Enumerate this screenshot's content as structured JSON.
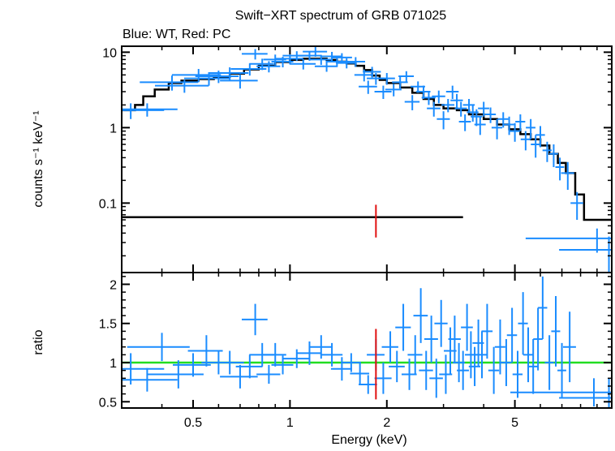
{
  "title": "Swift−XRT spectrum of GRB 071025",
  "subtitle": "Blue: WT, Red: PC",
  "colors": {
    "wt": "#1a8cff",
    "pc": "#e01010",
    "model": "#000000",
    "ratio_line": "#22dd22"
  },
  "chart_data": [
    {
      "type": "scatter",
      "panel": "top",
      "ylabel": "counts s⁻¹ keV⁻¹",
      "xscale": "log",
      "yscale": "log",
      "xlim": [
        0.3,
        10
      ],
      "ylim": [
        0.012,
        12
      ],
      "ytick_labels": [
        "0.1",
        "1",
        "10"
      ],
      "series": [
        {
          "role": "wt-data",
          "points": [
            [
              0.32,
              1.7,
              0.02,
              0.4
            ],
            [
              0.36,
              1.75,
              0.02,
              0.35
            ],
            [
              0.43,
              4.0,
              0.02,
              0.9
            ],
            [
              0.47,
              3.6,
              0.02,
              0.7
            ],
            [
              0.52,
              5.0,
              0.02,
              1.0
            ],
            [
              0.56,
              4.5,
              0.02,
              0.9
            ],
            [
              0.6,
              4.8,
              0.02,
              0.9
            ],
            [
              0.65,
              5.3,
              0.02,
              1.0
            ],
            [
              0.7,
              4.2,
              0.02,
              0.9
            ],
            [
              0.75,
              6.0,
              0.02,
              1.1
            ],
            [
              0.78,
              9.5,
              0.015,
              1.5
            ],
            [
              0.82,
              7.0,
              0.015,
              1.2
            ],
            [
              0.86,
              6.5,
              0.015,
              1.1
            ],
            [
              0.9,
              8.0,
              0.015,
              1.3
            ],
            [
              0.95,
              7.5,
              0.015,
              1.2
            ],
            [
              1.0,
              8.2,
              0.02,
              1.3
            ],
            [
              1.05,
              9.0,
              0.02,
              1.3
            ],
            [
              1.1,
              7.0,
              0.02,
              1.1
            ],
            [
              1.15,
              9.0,
              0.02,
              1.3
            ],
            [
              1.2,
              10.2,
              0.02,
              1.5
            ],
            [
              1.25,
              8.0,
              0.02,
              1.2
            ],
            [
              1.3,
              6.5,
              0.02,
              1.0
            ],
            [
              1.35,
              8.8,
              0.02,
              1.3
            ],
            [
              1.4,
              7.5,
              0.02,
              1.1
            ],
            [
              1.45,
              8.5,
              0.02,
              1.2
            ],
            [
              1.5,
              7.2,
              0.02,
              1.1
            ],
            [
              1.6,
              7.5,
              0.02,
              1.1
            ],
            [
              1.7,
              5.0,
              0.02,
              0.9
            ],
            [
              1.75,
              3.5,
              0.02,
              0.7
            ],
            [
              1.8,
              5.5,
              0.02,
              0.9
            ],
            [
              1.85,
              4.5,
              0.02,
              0.8
            ],
            [
              1.95,
              3.0,
              0.02,
              0.6
            ],
            [
              2.0,
              4.5,
              0.02,
              0.8
            ],
            [
              2.1,
              3.2,
              0.02,
              0.6
            ],
            [
              2.2,
              4.0,
              0.02,
              0.7
            ],
            [
              2.3,
              4.8,
              0.02,
              0.8
            ],
            [
              2.4,
              2.2,
              0.02,
              0.5
            ],
            [
              2.5,
              3.5,
              0.02,
              0.6
            ],
            [
              2.6,
              3.0,
              0.02,
              0.6
            ],
            [
              2.7,
              2.5,
              0.02,
              0.5
            ],
            [
              2.8,
              1.8,
              0.02,
              0.4
            ],
            [
              2.9,
              2.6,
              0.02,
              0.5
            ],
            [
              3.0,
              1.3,
              0.02,
              0.35
            ],
            [
              3.1,
              2.0,
              0.02,
              0.4
            ],
            [
              3.2,
              3.0,
              0.02,
              0.6
            ],
            [
              3.3,
              2.3,
              0.02,
              0.5
            ],
            [
              3.4,
              1.8,
              0.02,
              0.4
            ],
            [
              3.5,
              1.2,
              0.02,
              0.3
            ],
            [
              3.6,
              2.0,
              0.02,
              0.4
            ],
            [
              3.7,
              1.6,
              0.02,
              0.4
            ],
            [
              3.8,
              1.4,
              0.02,
              0.35
            ],
            [
              3.9,
              1.1,
              0.02,
              0.3
            ],
            [
              4.0,
              1.8,
              0.02,
              0.4
            ],
            [
              4.2,
              1.5,
              0.02,
              0.35
            ],
            [
              4.4,
              1.0,
              0.02,
              0.3
            ],
            [
              4.6,
              1.3,
              0.02,
              0.3
            ],
            [
              4.8,
              1.1,
              0.02,
              0.3
            ],
            [
              5.0,
              0.9,
              0.02,
              0.25
            ],
            [
              5.2,
              1.2,
              0.02,
              0.3
            ],
            [
              5.4,
              0.7,
              0.02,
              0.2
            ],
            [
              5.6,
              1.0,
              0.02,
              0.3
            ],
            [
              5.8,
              0.6,
              0.02,
              0.2
            ],
            [
              6.0,
              0.8,
              0.02,
              0.25
            ],
            [
              6.3,
              0.5,
              0.02,
              0.15
            ],
            [
              6.6,
              0.45,
              0.02,
              0.15
            ],
            [
              6.9,
              0.3,
              0.02,
              0.1
            ],
            [
              7.3,
              0.25,
              0.03,
              0.1
            ],
            [
              7.8,
              0.1,
              0.03,
              0.04
            ],
            [
              9.0,
              0.034,
              0.4,
              0.012
            ],
            [
              9.8,
              0.024,
              0.3,
              0.012
            ]
          ]
        },
        {
          "role": "wt-model",
          "steps": [
            [
              0.3,
              1.7
            ],
            [
              0.33,
              2.0
            ],
            [
              0.35,
              2.6
            ],
            [
              0.38,
              3.2
            ],
            [
              0.42,
              3.9
            ],
            [
              0.46,
              4.2
            ],
            [
              0.52,
              4.4
            ],
            [
              0.58,
              4.7
            ],
            [
              0.65,
              5.2
            ],
            [
              0.72,
              5.9
            ],
            [
              0.8,
              6.6
            ],
            [
              0.9,
              7.4
            ],
            [
              1.0,
              7.9
            ],
            [
              1.1,
              8.2
            ],
            [
              1.2,
              8.2
            ],
            [
              1.3,
              7.9
            ],
            [
              1.4,
              7.5
            ],
            [
              1.5,
              7.1
            ],
            [
              1.6,
              6.6
            ],
            [
              1.7,
              5.8
            ],
            [
              1.8,
              4.9
            ],
            [
              1.9,
              4.3
            ],
            [
              2.0,
              3.9
            ],
            [
              2.2,
              3.4
            ],
            [
              2.4,
              2.9
            ],
            [
              2.6,
              2.4
            ],
            [
              2.8,
              2.0
            ],
            [
              3.0,
              1.8
            ],
            [
              3.3,
              1.7
            ],
            [
              3.6,
              1.5
            ],
            [
              4.0,
              1.3
            ],
            [
              4.4,
              1.1
            ],
            [
              4.8,
              0.95
            ],
            [
              5.2,
              0.82
            ],
            [
              5.6,
              0.7
            ],
            [
              6.0,
              0.58
            ],
            [
              6.4,
              0.45
            ],
            [
              6.8,
              0.34
            ],
            [
              7.2,
              0.25
            ],
            [
              7.7,
              0.13
            ],
            [
              8.2,
              0.06
            ],
            [
              9.2,
              0.06
            ],
            [
              10.0,
              0.04
            ]
          ]
        },
        {
          "role": "pc-data",
          "points": [
            [
              1.85,
              0.065,
              0.0,
              0.03
            ]
          ]
        },
        {
          "role": "pc-model",
          "steps": [
            [
              0.3,
              0.065
            ],
            [
              3.45,
              0.065
            ]
          ]
        }
      ]
    },
    {
      "type": "scatter",
      "panel": "bottom",
      "ylabel": "ratio",
      "xlabel": "Energy (keV)",
      "xscale": "log",
      "xlim": [
        0.3,
        10
      ],
      "ylim": [
        0.42,
        2.15
      ],
      "ytick_labels": [
        "0.5",
        "1",
        "1.5",
        "2"
      ],
      "xtick_labels": [
        "0.5",
        "1",
        "2",
        "5"
      ],
      "xtick_values": [
        0.5,
        1,
        2,
        5
      ],
      "reference_line": 1,
      "series": [
        {
          "role": "wt-data",
          "points": [
            [
              0.32,
              0.92,
              0.02,
              0.2
            ],
            [
              0.36,
              0.78,
              0.02,
              0.15
            ],
            [
              0.4,
              1.2,
              0.02,
              0.18
            ],
            [
              0.45,
              0.85,
              0.02,
              0.18
            ],
            [
              0.5,
              0.97,
              0.015,
              0.15
            ],
            [
              0.55,
              1.15,
              0.015,
              0.2
            ],
            [
              0.6,
              1.0,
              0.015,
              0.15
            ],
            [
              0.65,
              1.0,
              0.015,
              0.15
            ],
            [
              0.7,
              0.82,
              0.02,
              0.15
            ],
            [
              0.75,
              0.95,
              0.015,
              0.15
            ],
            [
              0.78,
              1.55,
              0.015,
              0.2
            ],
            [
              0.82,
              1.1,
              0.015,
              0.15
            ],
            [
              0.86,
              0.85,
              0.015,
              0.12
            ],
            [
              0.9,
              1.1,
              0.015,
              0.15
            ],
            [
              0.95,
              0.97,
              0.015,
              0.12
            ],
            [
              1.05,
              1.05,
              0.02,
              0.12
            ],
            [
              1.15,
              1.12,
              0.02,
              0.15
            ],
            [
              1.25,
              1.2,
              0.02,
              0.15
            ],
            [
              1.35,
              1.1,
              0.02,
              0.15
            ],
            [
              1.45,
              0.92,
              0.02,
              0.15
            ],
            [
              1.55,
              1.0,
              0.02,
              0.12
            ],
            [
              1.65,
              0.86,
              0.02,
              0.15
            ],
            [
              1.75,
              0.72,
              0.02,
              0.12
            ],
            [
              1.85,
              1.1,
              0.02,
              0.2
            ],
            [
              1.95,
              0.8,
              0.02,
              0.2
            ],
            [
              2.05,
              1.2,
              0.02,
              0.2
            ],
            [
              2.15,
              0.95,
              0.02,
              0.2
            ],
            [
              2.25,
              1.45,
              0.02,
              0.3
            ],
            [
              2.35,
              0.85,
              0.02,
              0.2
            ],
            [
              2.45,
              1.1,
              0.02,
              0.25
            ],
            [
              2.55,
              1.6,
              0.02,
              0.35
            ],
            [
              2.65,
              0.9,
              0.02,
              0.25
            ],
            [
              2.75,
              1.3,
              0.02,
              0.3
            ],
            [
              2.85,
              0.8,
              0.02,
              0.25
            ],
            [
              2.95,
              1.5,
              0.02,
              0.3
            ],
            [
              3.05,
              0.85,
              0.02,
              0.25
            ],
            [
              3.15,
              1.15,
              0.02,
              0.3
            ],
            [
              3.25,
              1.3,
              0.02,
              0.3
            ],
            [
              3.35,
              1.0,
              0.02,
              0.25
            ],
            [
              3.45,
              0.9,
              0.02,
              0.25
            ],
            [
              3.55,
              1.45,
              0.02,
              0.3
            ],
            [
              3.65,
              1.1,
              0.02,
              0.3
            ],
            [
              3.75,
              0.95,
              0.02,
              0.25
            ],
            [
              3.85,
              1.25,
              0.02,
              0.3
            ],
            [
              3.95,
              1.1,
              0.02,
              0.3
            ],
            [
              4.1,
              1.4,
              0.02,
              0.35
            ],
            [
              4.3,
              0.9,
              0.02,
              0.3
            ],
            [
              4.5,
              1.2,
              0.02,
              0.35
            ],
            [
              4.7,
              1.0,
              0.02,
              0.3
            ],
            [
              4.9,
              1.35,
              0.02,
              0.35
            ],
            [
              5.1,
              0.85,
              0.02,
              0.3
            ],
            [
              5.3,
              1.5,
              0.02,
              0.4
            ],
            [
              5.5,
              1.1,
              0.02,
              0.35
            ],
            [
              5.7,
              0.95,
              0.02,
              0.35
            ],
            [
              5.9,
              1.3,
              0.02,
              0.4
            ],
            [
              6.1,
              1.7,
              0.02,
              0.4
            ],
            [
              6.4,
              1.0,
              0.02,
              0.35
            ],
            [
              6.7,
              1.4,
              0.02,
              0.45
            ],
            [
              7.0,
              0.9,
              0.02,
              0.35
            ],
            [
              7.4,
              1.2,
              0.03,
              0.45
            ],
            [
              8.8,
              0.62,
              0.45,
              0.18
            ],
            [
              9.8,
              0.55,
              0.3,
              0.25
            ]
          ]
        },
        {
          "role": "pc-data",
          "points": [
            [
              1.85,
              0.98,
              0.0,
              0.45
            ]
          ]
        }
      ]
    }
  ]
}
